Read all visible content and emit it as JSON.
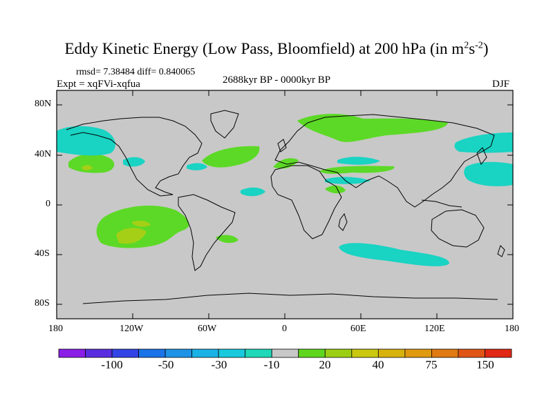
{
  "title": {
    "main": "Eddy Kinetic Energy (Low Pass, Bloomfield) at 200 hPa (in m",
    "sup1": "2",
    "mid": "s",
    "sup2": "-2",
    "end": ")"
  },
  "stats": "rmsd= 7.38484 diff= 0.840065",
  "experiment": "Expt = xqFVi-xqfua",
  "period": "2688kyr BP - 0000kyr BP",
  "season": "DJF",
  "y_ticks": [
    "80N",
    "40N",
    "0",
    "40S",
    "80S"
  ],
  "x_ticks": [
    "180",
    "120W",
    "60W",
    "0",
    "60E",
    "120E",
    "180"
  ],
  "colorbar": {
    "colors": [
      "#8a1ee6",
      "#5a2ee0",
      "#3344e6",
      "#1a73e8",
      "#1e93e6",
      "#19b2e6",
      "#19c9dd",
      "#1fd8b8",
      "#c8c8c8",
      "#5fd61e",
      "#9ccf14",
      "#c9c80e",
      "#d8b20d",
      "#e09a10",
      "#e07a12",
      "#e05516",
      "#e02814"
    ],
    "labels": [
      "-100",
      "-50",
      "-30",
      "-10",
      "20",
      "40",
      "75",
      "150"
    ]
  },
  "palette": {
    "cyan": "#19d3c3",
    "light_green": "#5cd926",
    "yellow_green": "#a5cf16",
    "background": "#c8c8c8"
  }
}
